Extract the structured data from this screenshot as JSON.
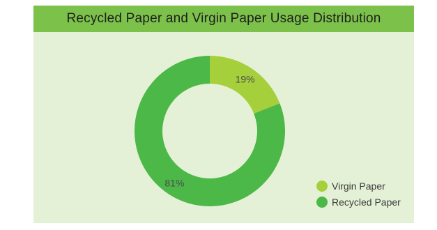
{
  "chart_data": {
    "type": "pie",
    "variant": "donut",
    "title": "Recycled Paper and Virgin Paper Usage Distribution",
    "categories": [
      "Virgin Paper",
      "Recycled Paper"
    ],
    "values": [
      19,
      81
    ],
    "labels": [
      "19%",
      "81%"
    ],
    "colors": [
      "#a6cf3c",
      "#4cb848"
    ],
    "legend_position": "bottom-right"
  },
  "colors": {
    "header_bg": "#7bc14a",
    "panel_bg": "#e5f1d6"
  }
}
